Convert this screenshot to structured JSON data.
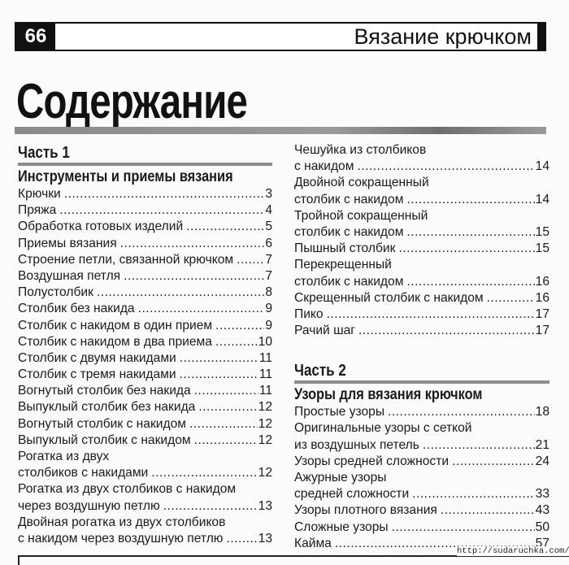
{
  "header": {
    "page_number": "66",
    "book_title": "Вязание крючком"
  },
  "title": "Содержание",
  "parts": [
    {
      "label": "Часть 1",
      "heading": "Инструменты и приемы вязания",
      "entries": [
        {
          "lines": [
            "Крючки"
          ],
          "page": "3"
        },
        {
          "lines": [
            "Пряжа"
          ],
          "page": "4"
        },
        {
          "lines": [
            "Обработка готовых изделий"
          ],
          "page": "5"
        },
        {
          "lines": [
            "Приемы вязания"
          ],
          "page": "6"
        },
        {
          "lines": [
            "Строение петли, связанной крючком"
          ],
          "page": "7"
        },
        {
          "lines": [
            "Воздушная петля"
          ],
          "page": "7"
        },
        {
          "lines": [
            "Полустолбик"
          ],
          "page": "8"
        },
        {
          "lines": [
            "Столбик без накида"
          ],
          "page": "9"
        },
        {
          "lines": [
            "Столбик с накидом в один прием"
          ],
          "page": "9"
        },
        {
          "lines": [
            "Столбик с накидом в два приема"
          ],
          "page": "10"
        },
        {
          "lines": [
            "Столбик с двумя накидами"
          ],
          "page": "11"
        },
        {
          "lines": [
            "Столбик с тремя накидами"
          ],
          "page": "11"
        },
        {
          "lines": [
            "Вогнутый столбик без накида"
          ],
          "page": "11"
        },
        {
          "lines": [
            "Выпуклый столбик без накида"
          ],
          "page": "12"
        },
        {
          "lines": [
            "Вогнутый столбик с накидом"
          ],
          "page": "12"
        },
        {
          "lines": [
            "Выпуклый столбик с накидом"
          ],
          "page": "12"
        },
        {
          "lines": [
            "Рогатка из двух",
            "столбиков с накидами"
          ],
          "page": "12"
        },
        {
          "lines": [
            "Рогатка из двух столбиков с накидом",
            "через воздушную петлю"
          ],
          "page": "13"
        },
        {
          "lines": [
            "Двойная рогатка из двух столбиков",
            "с накидом через воздушную петлю"
          ],
          "page": "13"
        },
        {
          "lines": [
            "Чешуйка из столбиков",
            "с накидом"
          ],
          "page": "14"
        },
        {
          "lines": [
            "Двойной сокращенный",
            "столбик с накидом"
          ],
          "page": "14"
        },
        {
          "lines": [
            "Тройной сокращенный",
            "столбик с накидом"
          ],
          "page": "15"
        },
        {
          "lines": [
            "Пышный столбик"
          ],
          "page": "15"
        },
        {
          "lines": [
            "Перекрещенный",
            "столбик с накидом"
          ],
          "page": "16"
        },
        {
          "lines": [
            "Скрещенный столбик с накидом"
          ],
          "page": "16"
        },
        {
          "lines": [
            "Пико"
          ],
          "page": "17"
        },
        {
          "lines": [
            "Рачий шаг"
          ],
          "page": "17"
        }
      ]
    },
    {
      "label": "Часть 2",
      "heading": "Узоры для вязания крючком",
      "entries": [
        {
          "lines": [
            "Простые узоры"
          ],
          "page": "18"
        },
        {
          "lines": [
            "Оригинальные узоры с сеткой",
            "из воздушных петель"
          ],
          "page": "21"
        },
        {
          "lines": [
            "Узоры средней сложности"
          ],
          "page": "24"
        },
        {
          "lines": [
            "Ажурные узоры",
            "средней сложности"
          ],
          "page": "33"
        },
        {
          "lines": [
            "Узоры плотного вязания"
          ],
          "page": "43"
        },
        {
          "lines": [
            "Сложные узоры"
          ],
          "page": "50"
        },
        {
          "lines": [
            "Кайма"
          ],
          "page": "57"
        }
      ]
    }
  ],
  "watermark": "http://sudaruchka.com/"
}
